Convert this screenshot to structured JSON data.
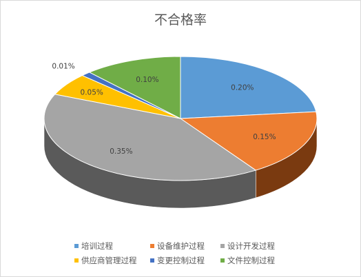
{
  "chart_data": {
    "type": "pie",
    "title": "不合格率",
    "categories": [
      "培训过程",
      "设备维护过程",
      "设计开发过程",
      "供应商管理过程",
      "变更控制过程",
      "文件控制过程"
    ],
    "values": [
      0.2,
      0.15,
      0.35,
      0.05,
      0.01,
      0.1
    ],
    "data_labels": [
      "0.20%",
      "0.15%",
      "0.35%",
      "0.05%",
      "0.01%",
      "0.10%"
    ],
    "legend_position": "bottom",
    "three_d": true
  },
  "colors": [
    "#5b9bd5",
    "#ed7d31",
    "#a5a5a5",
    "#ffc000",
    "#4472c4",
    "#70ad47"
  ],
  "side_colors": [
    "#2f5f8f",
    "#7a3a10",
    "#5a5a5a",
    "#8a6a00",
    "#22386a",
    "#3a5e24"
  ]
}
